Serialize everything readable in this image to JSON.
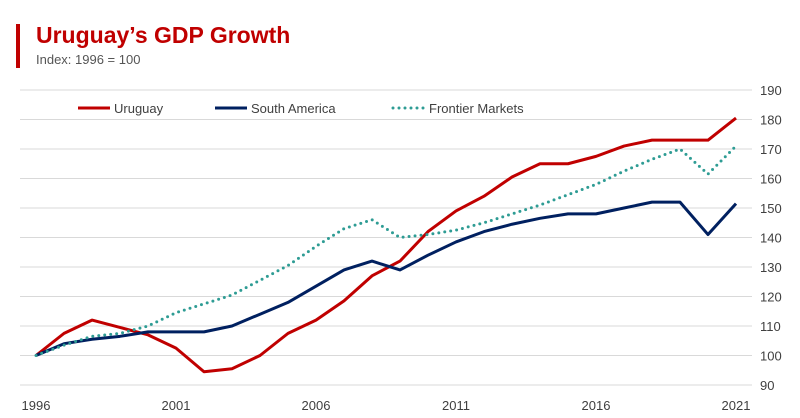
{
  "chart_data": {
    "type": "line",
    "title": "Uruguay’s GDP Growth",
    "subtitle": "Index: 1996 = 100",
    "xlabel": "",
    "ylabel": "",
    "ylim": [
      90,
      190
    ],
    "y_ticks": [
      90,
      100,
      110,
      120,
      130,
      140,
      150,
      160,
      170,
      180,
      190
    ],
    "y_axis_side": "right",
    "x_tick_labels": [
      "1996",
      "2001",
      "2006",
      "2011",
      "2016",
      "2021"
    ],
    "x": [
      1996,
      1997,
      1998,
      1999,
      2000,
      2001,
      2002,
      2003,
      2004,
      2005,
      2006,
      2007,
      2008,
      2009,
      2010,
      2011,
      2012,
      2013,
      2014,
      2015,
      2016,
      2017,
      2018,
      2019,
      2020,
      2021
    ],
    "grid": true,
    "legend": "top",
    "series": [
      {
        "name": "Uruguay",
        "color": "#c00000",
        "style": "solid",
        "values": [
          100,
          107.5,
          112,
          109.5,
          107,
          102.5,
          94.5,
          95.5,
          100,
          107.5,
          112,
          118.5,
          127,
          132,
          142,
          149,
          154,
          160.5,
          165,
          165,
          167.5,
          171,
          173,
          173,
          173,
          180.5
        ]
      },
      {
        "name": "South America",
        "color": "#002060",
        "style": "solid",
        "values": [
          100,
          104,
          105.5,
          106.5,
          108,
          108,
          108,
          110,
          114,
          118,
          123.5,
          129,
          132,
          129,
          134,
          138.5,
          142,
          144.5,
          146.5,
          148,
          148,
          150,
          152,
          152,
          141,
          151.5
        ]
      },
      {
        "name": "Frontier Markets",
        "color": "#2e9c94",
        "style": "dotted",
        "values": [
          100,
          103.5,
          106.5,
          107.5,
          110,
          114.5,
          117.5,
          120.5,
          125.5,
          130.5,
          137,
          143,
          146,
          140,
          141,
          142.5,
          145,
          148,
          151,
          154.5,
          158,
          162.5,
          166.5,
          170,
          161.5,
          171
        ]
      }
    ]
  }
}
